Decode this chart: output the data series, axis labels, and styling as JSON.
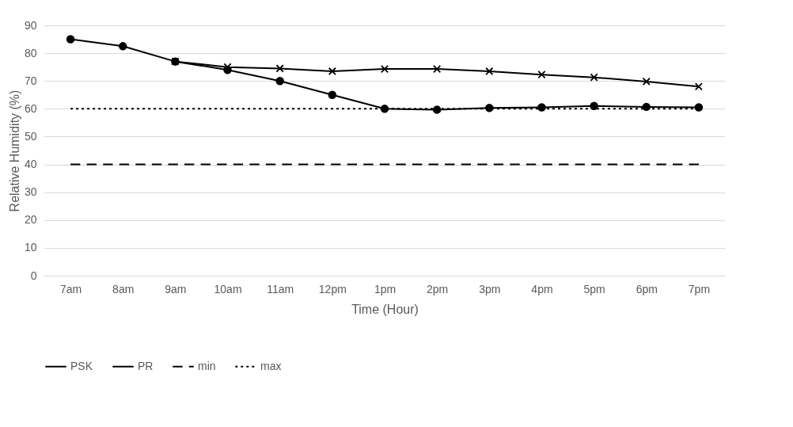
{
  "chart_data": {
    "type": "line",
    "xlabel": "Time (Hour)",
    "ylabel": "Relative Humidity (%)",
    "categories": [
      "7am",
      "8am",
      "9am",
      "10am",
      "11am",
      "12pm",
      "1pm",
      "2pm",
      "3pm",
      "4pm",
      "5pm",
      "6pm",
      "7pm"
    ],
    "ylim": [
      0,
      90
    ],
    "yticks": [
      0,
      10,
      20,
      30,
      40,
      50,
      60,
      70,
      80,
      90
    ],
    "grid": "y",
    "legend": "bottom",
    "series": [
      {
        "name": "PSK",
        "color": "#000000",
        "marker": "circle",
        "line_style": "solid",
        "values": [
          85,
          82.5,
          77,
          74,
          70,
          65,
          60,
          59.7,
          60.3,
          60.5,
          61,
          60.7,
          60.5
        ]
      },
      {
        "name": "PR",
        "color": "#000000",
        "marker": "cross",
        "line_style": "solid",
        "values": [
          null,
          null,
          77,
          75,
          74.5,
          73.5,
          74.3,
          74.3,
          73.5,
          72.3,
          71.3,
          69.8,
          68
        ]
      },
      {
        "name": "min",
        "color": "#000000",
        "marker": "none",
        "line_style": "dashed",
        "values": [
          40,
          40,
          40,
          40,
          40,
          40,
          40,
          40,
          40,
          40,
          40,
          40,
          40
        ]
      },
      {
        "name": "max",
        "color": "#000000",
        "marker": "none",
        "line_style": "dotted",
        "values": [
          60,
          60,
          60,
          60,
          60,
          60,
          60,
          60,
          60,
          60,
          60,
          60,
          60
        ]
      }
    ]
  }
}
